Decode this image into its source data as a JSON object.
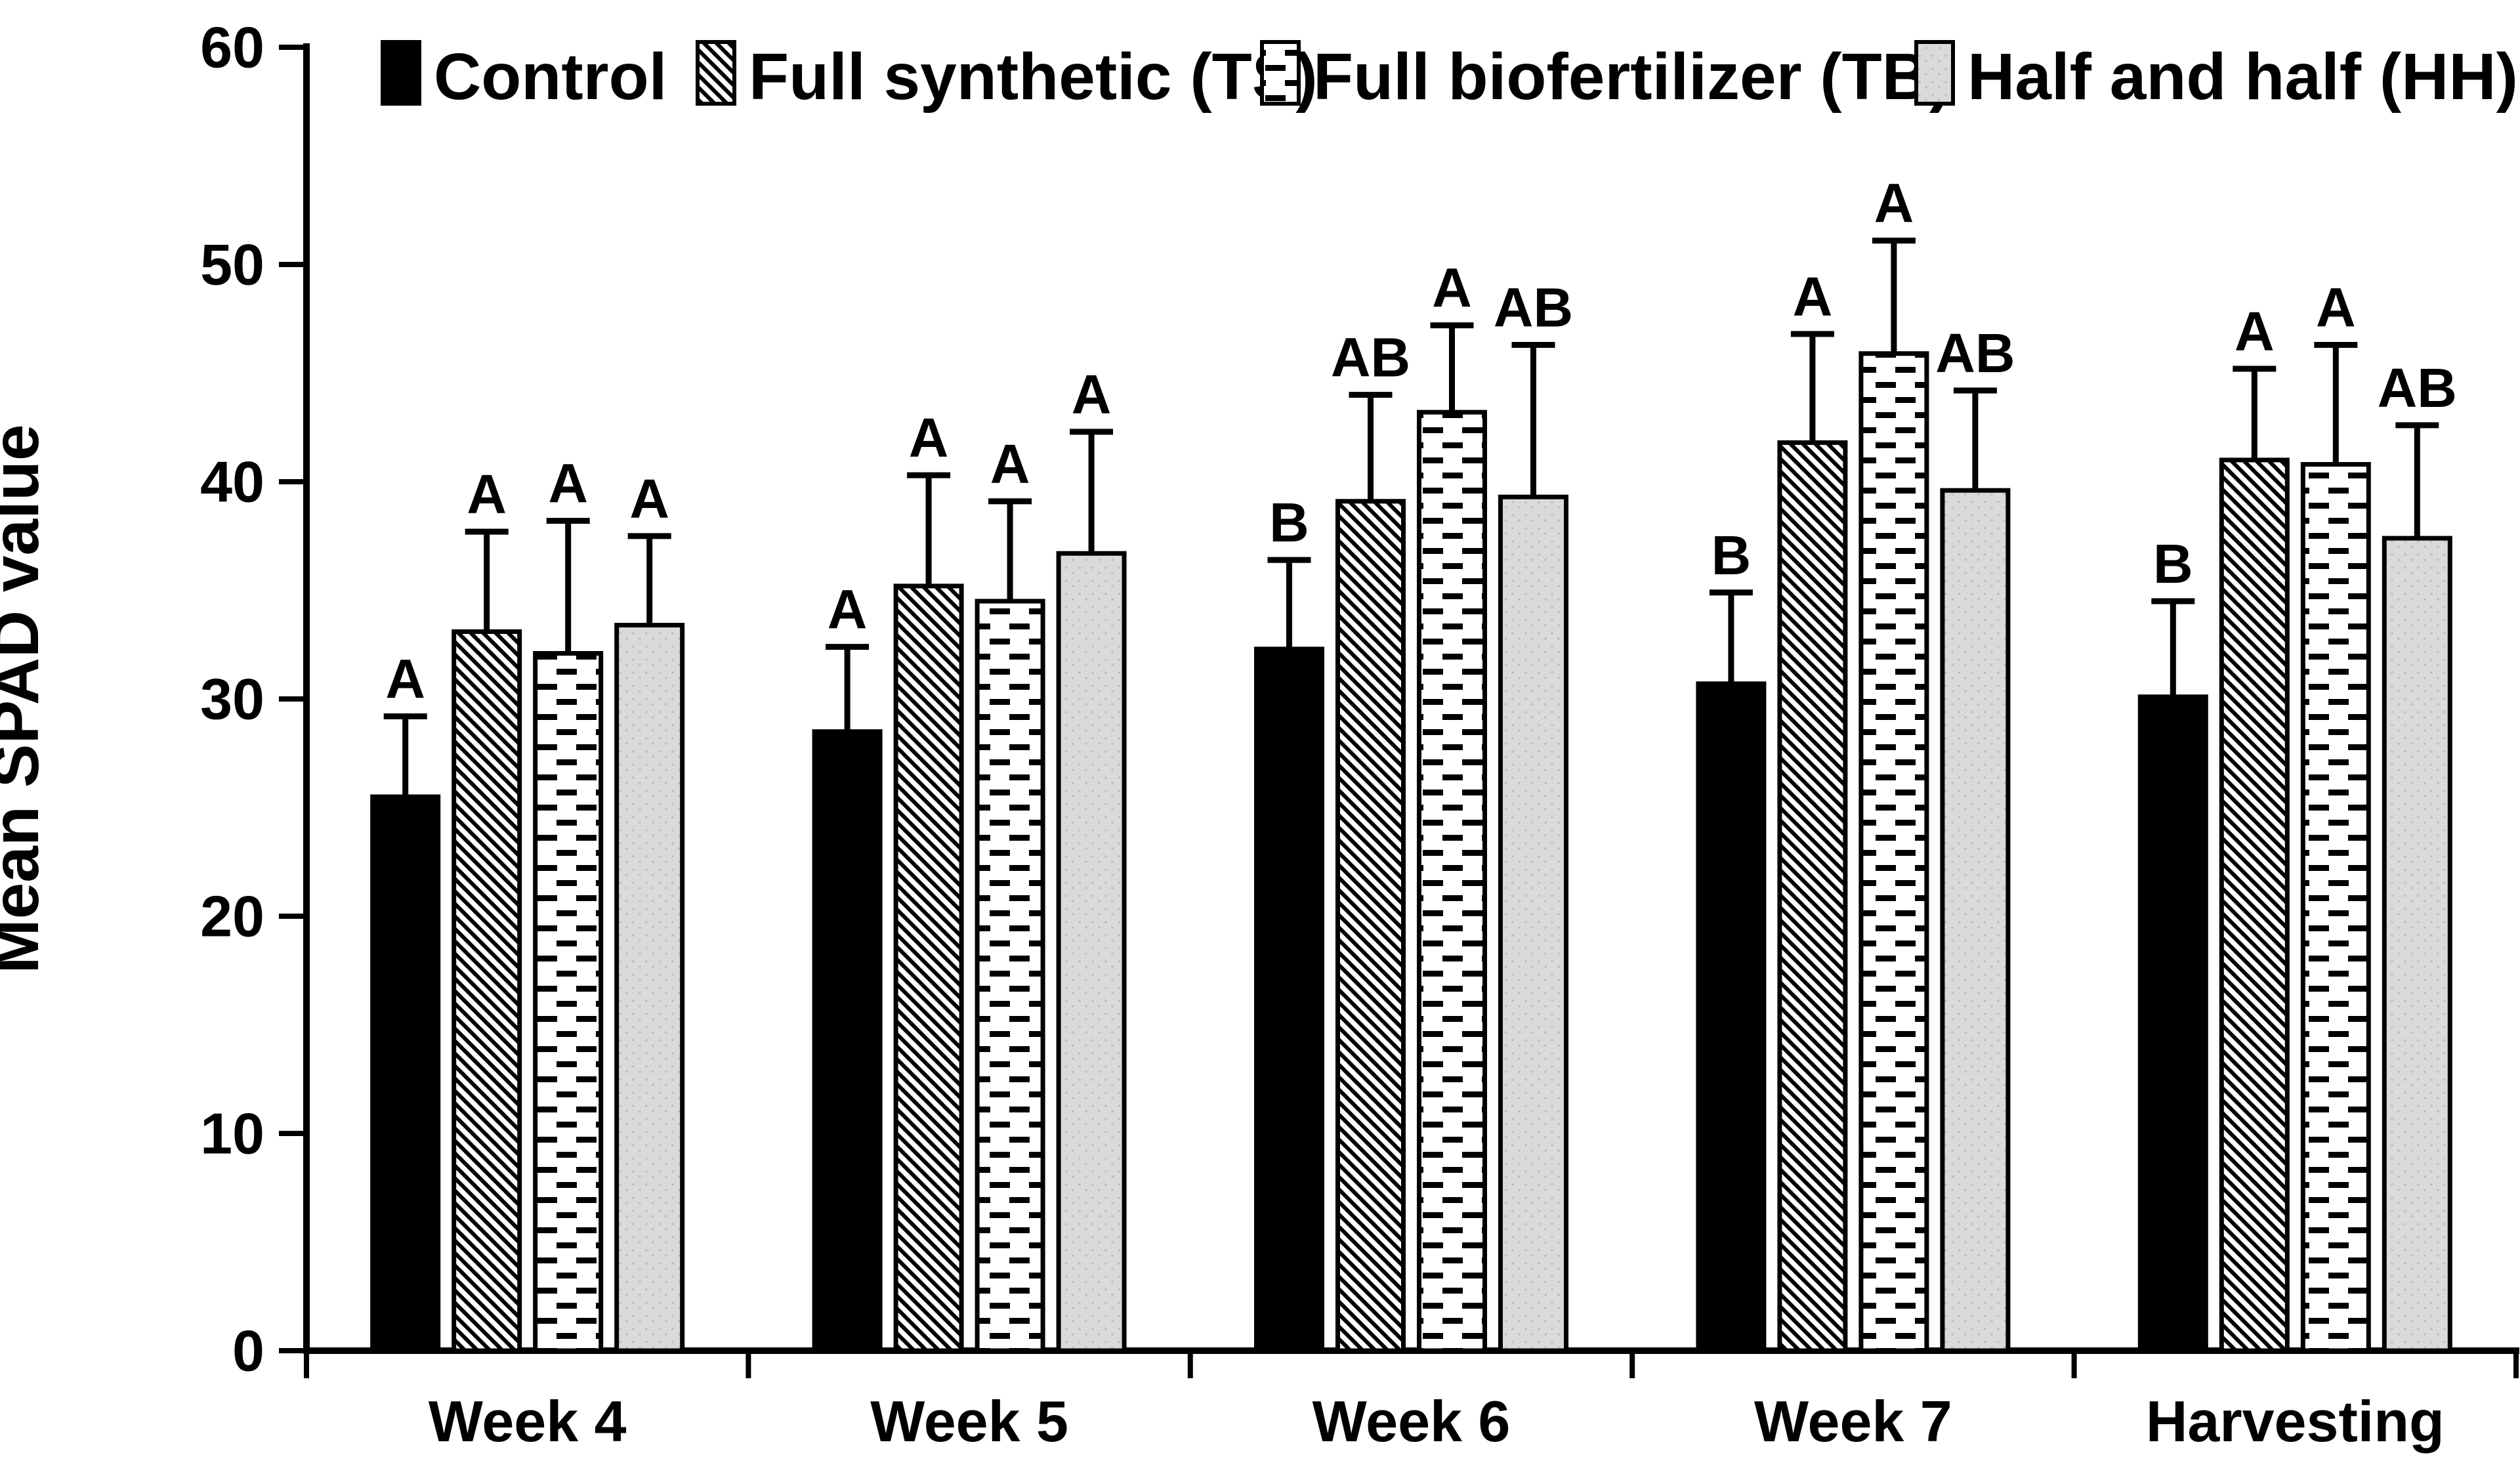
{
  "chart_data": {
    "type": "bar",
    "title": "",
    "xlabel": "",
    "ylabel": "Mean SPAD value",
    "ylim": [
      0,
      60
    ],
    "yticks": [
      0,
      10,
      20,
      30,
      40,
      50,
      60
    ],
    "grid": false,
    "legend_position": "top",
    "categories": [
      "Week 4",
      "Week 5",
      "Week 6",
      "Week 7",
      "Harvesting"
    ],
    "series": [
      {
        "name": "Control",
        "pattern": "solid-black",
        "values": [
          25.5,
          28.5,
          32.3,
          30.7,
          30.1
        ],
        "error_upper": [
          3.7,
          3.9,
          4.1,
          4.2,
          4.4
        ],
        "letters": [
          "A",
          "A",
          "B",
          "B",
          "B"
        ]
      },
      {
        "name": "Full synthetic (TS)",
        "pattern": "diagonal-hatch",
        "values": [
          33.1,
          35.2,
          39.1,
          41.8,
          41.0
        ],
        "error_upper": [
          4.6,
          5.1,
          4.9,
          5.0,
          4.2
        ],
        "letters": [
          "A",
          "A",
          "AB",
          "A",
          "A"
        ]
      },
      {
        "name": "Full biofertilizer (TB)",
        "pattern": "horizontal-dash",
        "values": [
          32.1,
          34.5,
          43.2,
          45.9,
          40.8
        ],
        "error_upper": [
          6.1,
          4.6,
          4.0,
          5.2,
          5.5
        ],
        "letters": [
          "A",
          "A",
          "A",
          "A",
          "A"
        ]
      },
      {
        "name": "Half and half (HH)",
        "pattern": "gray-dotted",
        "values": [
          33.4,
          36.7,
          39.3,
          39.6,
          37.4
        ],
        "error_upper": [
          4.1,
          5.6,
          7.0,
          4.6,
          5.2
        ],
        "letters": [
          "A",
          "A",
          "AB",
          "AB",
          "AB"
        ]
      }
    ],
    "colors": {
      "foreground": "#000000",
      "background": "#ffffff",
      "gray_fill": "#dadada",
      "gray_dot": "#bdbdbd"
    }
  }
}
